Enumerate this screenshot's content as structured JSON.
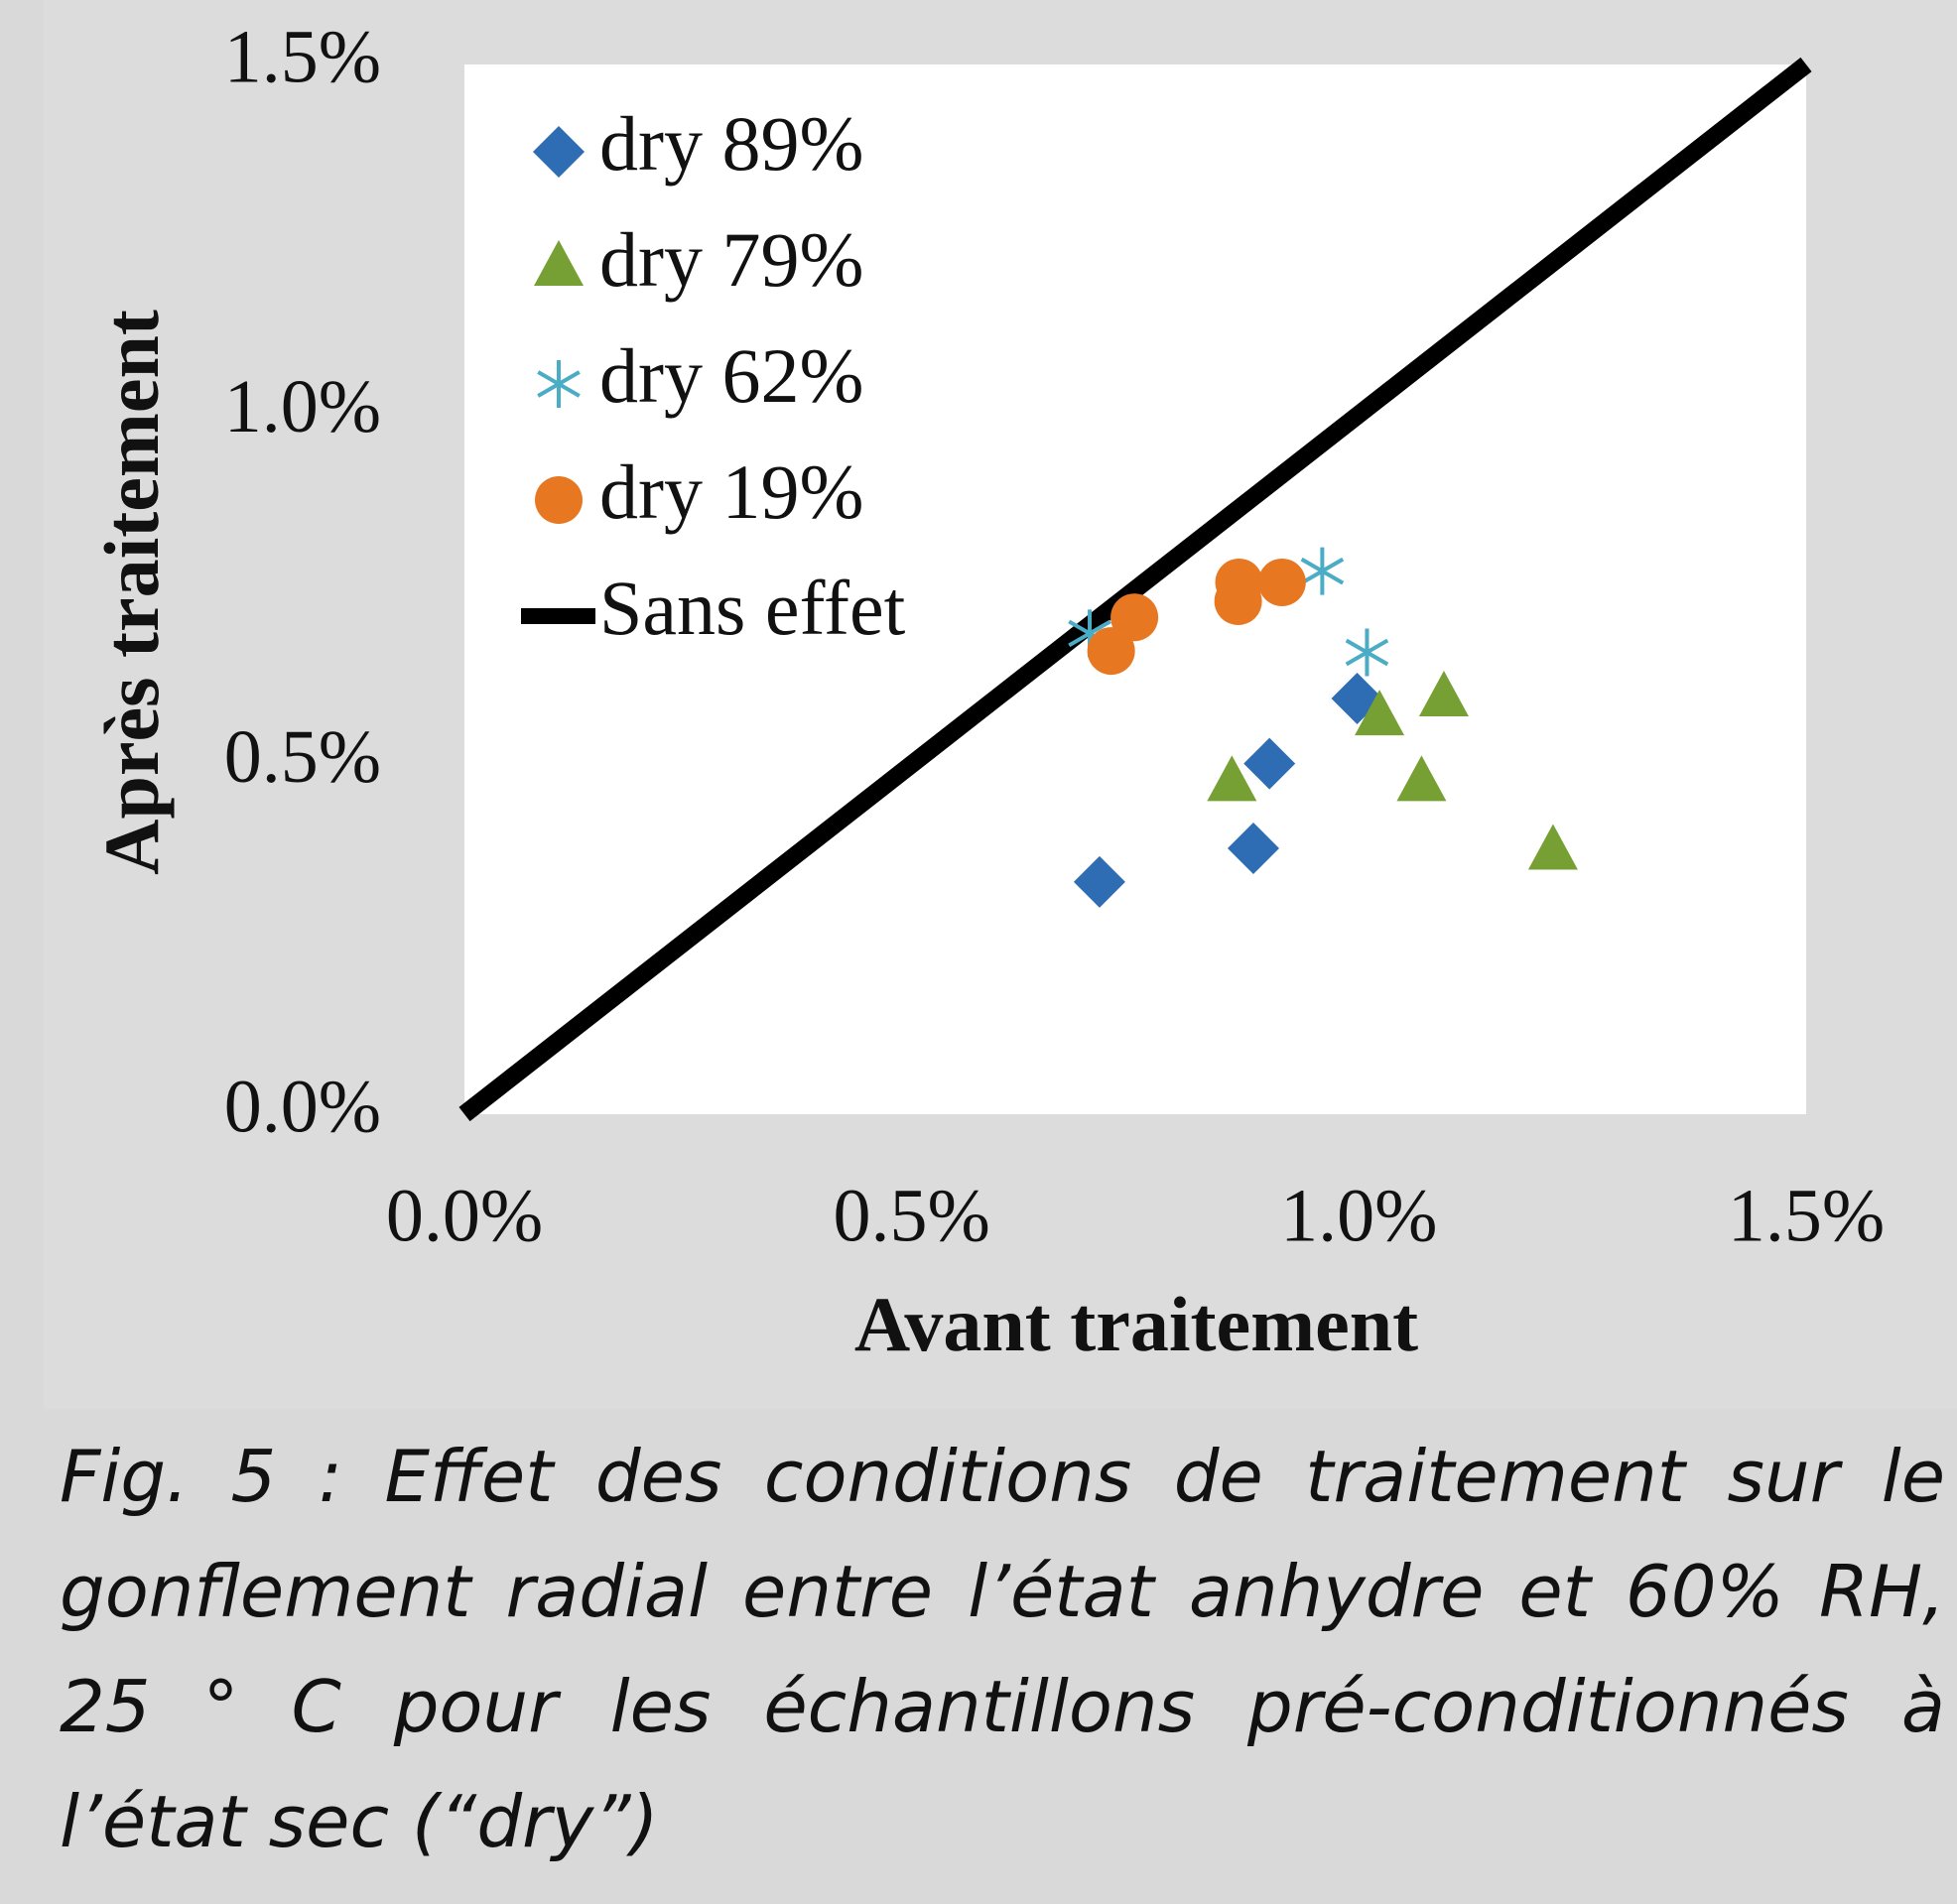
{
  "chart_data": {
    "type": "scatter",
    "xlabel": "Avant traitement",
    "ylabel": "Après traitement",
    "xlim": [
      0,
      1.5
    ],
    "ylim": [
      0,
      1.5
    ],
    "xticks": [
      {
        "value": 0,
        "label": "0.0%"
      },
      {
        "value": 0.5,
        "label": "0.5%"
      },
      {
        "value": 1.0,
        "label": "1.0%"
      },
      {
        "value": 1.5,
        "label": "1.5%"
      }
    ],
    "yticks": [
      {
        "value": 0,
        "label": "0.0%"
      },
      {
        "value": 0.5,
        "label": "0.5%"
      },
      {
        "value": 1.0,
        "label": "1.0%"
      },
      {
        "value": 1.5,
        "label": "1.5%"
      }
    ],
    "legend": "upper left",
    "series": [
      {
        "name": "dry 89%",
        "marker": "diamond",
        "color": "#2e6db4",
        "x": [
          0.71,
          0.882,
          0.9,
          0.998
        ],
        "values": [
          0.332,
          0.38,
          0.501,
          0.594
        ]
      },
      {
        "name": "dry 79%",
        "marker": "triangle",
        "color": "#77a034",
        "x": [
          0.858,
          1.023,
          1.095,
          1.07,
          1.217
        ],
        "values": [
          0.473,
          0.567,
          0.594,
          0.473,
          0.375
        ]
      },
      {
        "name": "dry 62%",
        "marker": "star",
        "color": "#4bacc6",
        "x": [
          0.699,
          0.959,
          1.009
        ],
        "values": [
          0.687,
          0.776,
          0.66
        ]
      },
      {
        "name": "dry 19%",
        "marker": "circle",
        "color": "#e87722",
        "x": [
          0.723,
          0.749,
          0.866,
          0.865,
          0.914
        ],
        "values": [
          0.662,
          0.71,
          0.76,
          0.733,
          0.76
        ]
      },
      {
        "name": "Sans effet",
        "marker": "line",
        "color": "#000000",
        "x": [
          0,
          1.5
        ],
        "values": [
          0,
          1.5
        ]
      }
    ]
  },
  "caption": "Fig. 5 : Effet des conditions de traitement sur le gonflement radial entre l’état anhydre et 60% RH, 25 ° C pour les échantillons pré-conditionnés à l’état sec (“dry”)"
}
